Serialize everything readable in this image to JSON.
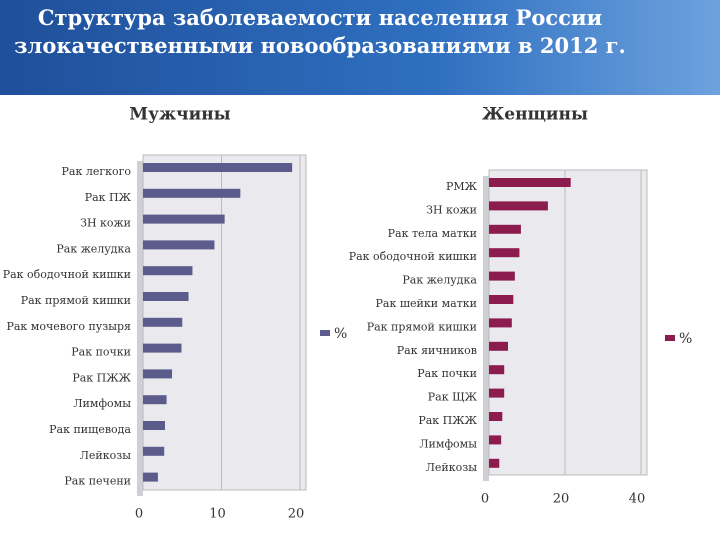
{
  "title": "Структура заболеваемости населения России злокачественными новообразованиями в 2012 г.",
  "chart_data": [
    {
      "type": "bar",
      "orientation": "horizontal",
      "title": "Мужчины",
      "categories": [
        "Рак легкого",
        "Рак ПЖ",
        "ЗН кожи",
        "Рак желудка",
        "Рак ободочной кишки",
        "Рак прямой кишки",
        "Рак мочевого пузыря",
        "Рак почки",
        "Рак ПЖЖ",
        "Лимфомы",
        "Рак пищевода",
        "Лейкозы",
        "Рак печени"
      ],
      "series": [
        {
          "name": "%",
          "color": "#5b5b8c",
          "values": [
            19,
            12.4,
            10.4,
            9.1,
            6.3,
            5.8,
            5,
            4.9,
            3.7,
            3,
            2.8,
            2.7,
            1.9
          ]
        }
      ],
      "xlim": [
        0,
        20
      ],
      "xticks": [
        0,
        10,
        20
      ],
      "grid": true,
      "legend": "right"
    },
    {
      "type": "bar",
      "orientation": "horizontal",
      "title": "Женщины",
      "categories": [
        "РМЖ",
        "ЗН кожи",
        "Рак тела матки",
        "Рак ободочной кишки",
        "Рак желудка",
        "Рак шейки матки",
        "Рак прямой кишки",
        "Рак яичников",
        "Рак почки",
        "Рак ЩЖ",
        "Рак ПЖЖ",
        "Лимфомы",
        "Лейкозы"
      ],
      "series": [
        {
          "name": "%",
          "color": "#8c1c4e",
          "values": [
            21.5,
            15.5,
            8.4,
            8,
            6.8,
            6.4,
            6,
            5,
            4,
            4,
            3.5,
            3.2,
            2.7
          ]
        }
      ],
      "xlim": [
        0,
        40
      ],
      "xticks": [
        0,
        20,
        40
      ],
      "grid": true,
      "legend": "right"
    }
  ]
}
